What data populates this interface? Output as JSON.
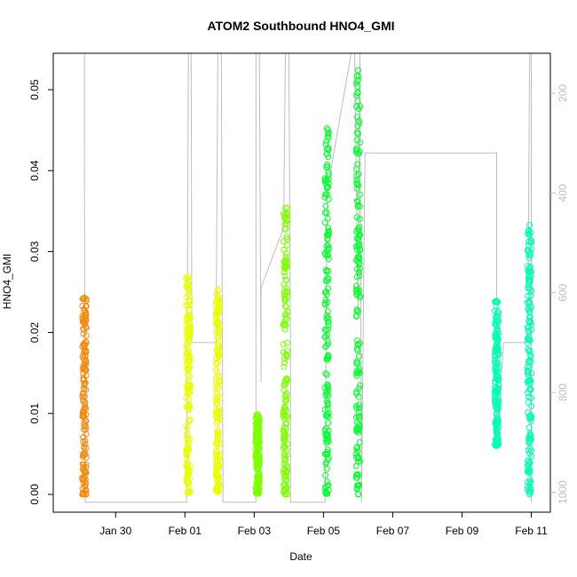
{
  "chart_data": {
    "type": "scatter",
    "title": "ATOM2 Southbound HNO4_GMI",
    "xlabel": "Date",
    "ylabel": "HNO4_GMI",
    "x_tick_labels": [
      "Jan 30",
      "Feb 01",
      "Feb 03",
      "Feb 05",
      "Feb 07",
      "Feb 09",
      "Feb 11"
    ],
    "x_tick_values": [
      30,
      32,
      34,
      36,
      38,
      40,
      42
    ],
    "x_unit": "day offset from Jan 0, 2017",
    "xlim": [
      28.2,
      42.55
    ],
    "ylim": [
      -0.0022,
      0.0545
    ],
    "y_ticks": [
      0.0,
      0.01,
      0.02,
      0.03,
      0.04,
      0.05
    ],
    "y_tick_labels": [
      "0.00",
      "0.01",
      "0.02",
      "0.03",
      "0.04",
      "0.05"
    ],
    "right_axis": {
      "label": "",
      "ticks": [
        200,
        400,
        600,
        800,
        1000
      ],
      "tick_labels": [
        "200",
        "400",
        "600",
        "800",
        "1000"
      ],
      "lim": [
        1040,
        120
      ],
      "color": "#bebebe"
    },
    "series": [
      {
        "color": "#f28a0f",
        "segments": [
          {
            "x": 29.1,
            "ymin": 0.0,
            "ymax": 0.0243
          }
        ]
      },
      {
        "color": "#e8ff00",
        "segments": [
          {
            "x": 32.1,
            "ymin": 0.0002,
            "ymax": 0.0269
          },
          {
            "x": 32.95,
            "ymin": 0.0003,
            "ymax": 0.0253
          }
        ]
      },
      {
        "color": "#7dff00",
        "segments": [
          {
            "x": 34.1,
            "ymin": 0.0001,
            "ymax": 0.0099
          },
          {
            "x": 34.9,
            "ymin": 0.0,
            "ymax": 0.0354
          }
        ]
      },
      {
        "color": "#00ff2a",
        "segments": [
          {
            "x": 36.1,
            "ymin": 0.0001,
            "ymax": 0.0452
          },
          {
            "x": 37.0,
            "ymin": 0.0,
            "ymax": 0.0524
          }
        ]
      },
      {
        "color": "#00ffae",
        "segments": [
          {
            "x": 41.0,
            "ymin": 0.006,
            "ymax": 0.0239
          },
          {
            "x": 41.95,
            "ymin": 0.0,
            "ymax": 0.0333
          }
        ]
      }
    ],
    "pressure_trace": {
      "color": "#bebebe",
      "points": [
        [
          29.1,
          120
        ],
        [
          29.1,
          300
        ],
        [
          29.12,
          1020
        ],
        [
          29.2,
          1020
        ],
        [
          32.05,
          1020
        ],
        [
          32.1,
          120
        ],
        [
          32.18,
          120
        ],
        [
          32.2,
          700
        ],
        [
          32.9,
          700
        ],
        [
          32.95,
          120
        ],
        [
          33.05,
          120
        ],
        [
          33.1,
          1020
        ],
        [
          34.05,
          1020
        ],
        [
          34.05,
          120
        ],
        [
          34.15,
          120
        ],
        [
          34.2,
          780
        ],
        [
          34.2,
          590
        ],
        [
          34.85,
          470
        ],
        [
          34.9,
          120
        ],
        [
          35.0,
          120
        ],
        [
          35.05,
          700
        ],
        [
          35.05,
          1020
        ],
        [
          36.05,
          1020
        ],
        [
          36.1,
          400
        ],
        [
          36.8,
          120
        ],
        [
          36.9,
          120
        ],
        [
          37.0,
          650
        ],
        [
          37.05,
          120
        ],
        [
          37.1,
          1020
        ],
        [
          37.2,
          320
        ],
        [
          41.0,
          320
        ],
        [
          41.0,
          900
        ],
        [
          41.2,
          700
        ],
        [
          41.9,
          700
        ],
        [
          41.95,
          120
        ],
        [
          42.0,
          120
        ],
        [
          42.0,
          1020
        ]
      ]
    }
  }
}
